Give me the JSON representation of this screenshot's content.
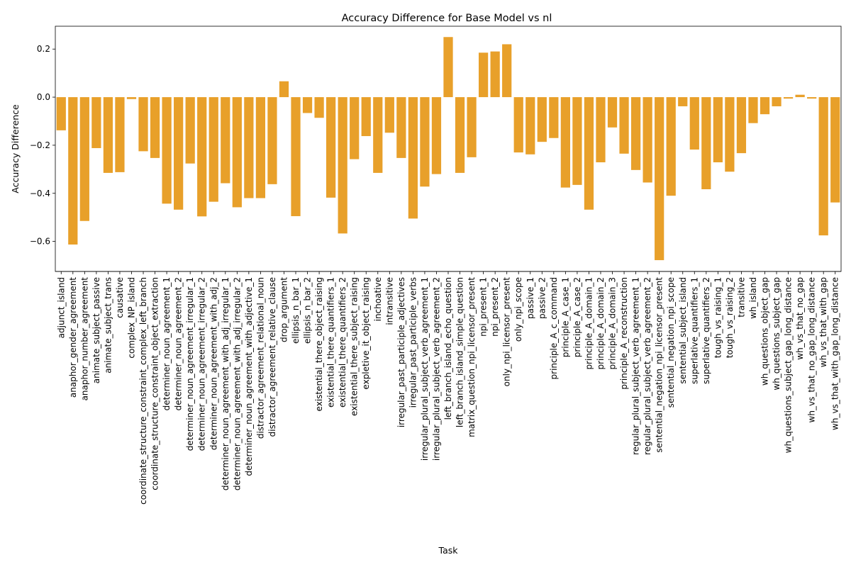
{
  "chart_data": {
    "type": "bar",
    "title": "Accuracy Difference for Base Model vs nl",
    "xlabel": "Task",
    "ylabel": "Accuracy Difference",
    "ylim": [
      -0.725,
      0.295
    ],
    "yticks": [
      -0.6,
      -0.4,
      -0.2,
      0.0,
      0.2
    ],
    "ytick_labels": [
      "−0.6",
      "−0.4",
      "−0.2",
      "0.0",
      "0.2"
    ],
    "grid": false,
    "bar_color": "#e8a02a",
    "categories": [
      "adjunct_island",
      "anaphor_gender_agreement",
      "anaphor_number_agreement",
      "animate_subject_passive",
      "animate_subject_trans",
      "causative",
      "complex_NP_island",
      "coordinate_structure_constraint_complex_left_branch",
      "coordinate_structure_constraint_object_extraction",
      "determiner_noun_agreement_1",
      "determiner_noun_agreement_2",
      "determiner_noun_agreement_irregular_1",
      "determiner_noun_agreement_irregular_2",
      "determiner_noun_agreement_with_adj_2",
      "determiner_noun_agreement_with_adj_irregular_1",
      "determiner_noun_agreement_with_adj_irregular_2",
      "determiner_noun_agreement_with_adjective_1",
      "distractor_agreement_relational_noun",
      "distractor_agreement_relative_clause",
      "drop_argument",
      "ellipsis_n_bar_1",
      "ellipsis_n_bar_2",
      "existential_there_object_raising",
      "existential_there_quantifiers_1",
      "existential_there_quantifiers_2",
      "existential_there_subject_raising",
      "expletive_it_object_raising",
      "inchoative",
      "intransitive",
      "irregular_past_participle_adjectives",
      "irregular_past_participle_verbs",
      "irregular_plural_subject_verb_agreement_1",
      "irregular_plural_subject_verb_agreement_2",
      "left_branch_island_echo_question",
      "left_branch_island_simple_question",
      "matrix_question_npi_licensor_present",
      "npi_present_1",
      "npi_present_2",
      "only_npi_licensor_present",
      "only_npi_scope",
      "passive_1",
      "passive_2",
      "principle_A_c_command",
      "principle_A_case_1",
      "principle_A_case_2",
      "principle_A_domain_1",
      "principle_A_domain_2",
      "principle_A_domain_3",
      "principle_A_reconstruction",
      "regular_plural_subject_verb_agreement_1",
      "regular_plural_subject_verb_agreement_2",
      "sentential_negation_npi_licensor_present",
      "sentential_negation_npi_scope",
      "sentential_subject_island",
      "superlative_quantifiers_1",
      "superlative_quantifiers_2",
      "tough_vs_raising_1",
      "tough_vs_raising_2",
      "transitive",
      "wh_island",
      "wh_questions_object_gap",
      "wh_questions_subject_gap",
      "wh_questions_subject_gap_long_distance",
      "wh_vs_that_no_gap",
      "wh_vs_that_no_gap_long_distance",
      "wh_vs_that_with_gap",
      "wh_vs_that_with_gap_long_distance"
    ],
    "values": [
      -0.138,
      -0.613,
      -0.515,
      -0.212,
      -0.315,
      -0.312,
      -0.008,
      -0.225,
      -0.253,
      -0.443,
      -0.468,
      -0.276,
      -0.496,
      -0.435,
      -0.358,
      -0.458,
      -0.42,
      -0.42,
      -0.362,
      0.066,
      -0.495,
      -0.066,
      -0.086,
      -0.418,
      -0.567,
      -0.258,
      -0.162,
      -0.315,
      -0.148,
      -0.253,
      -0.505,
      -0.372,
      -0.32,
      0.25,
      -0.315,
      -0.25,
      0.185,
      0.19,
      0.22,
      -0.23,
      -0.238,
      -0.186,
      -0.17,
      -0.376,
      -0.365,
      -0.468,
      -0.271,
      -0.126,
      -0.235,
      -0.303,
      -0.355,
      -0.678,
      -0.41,
      -0.038,
      -0.218,
      -0.383,
      -0.271,
      -0.31,
      -0.233,
      -0.108,
      -0.071,
      -0.038,
      -0.006,
      0.01,
      -0.006,
      -0.575,
      -0.438
    ]
  }
}
